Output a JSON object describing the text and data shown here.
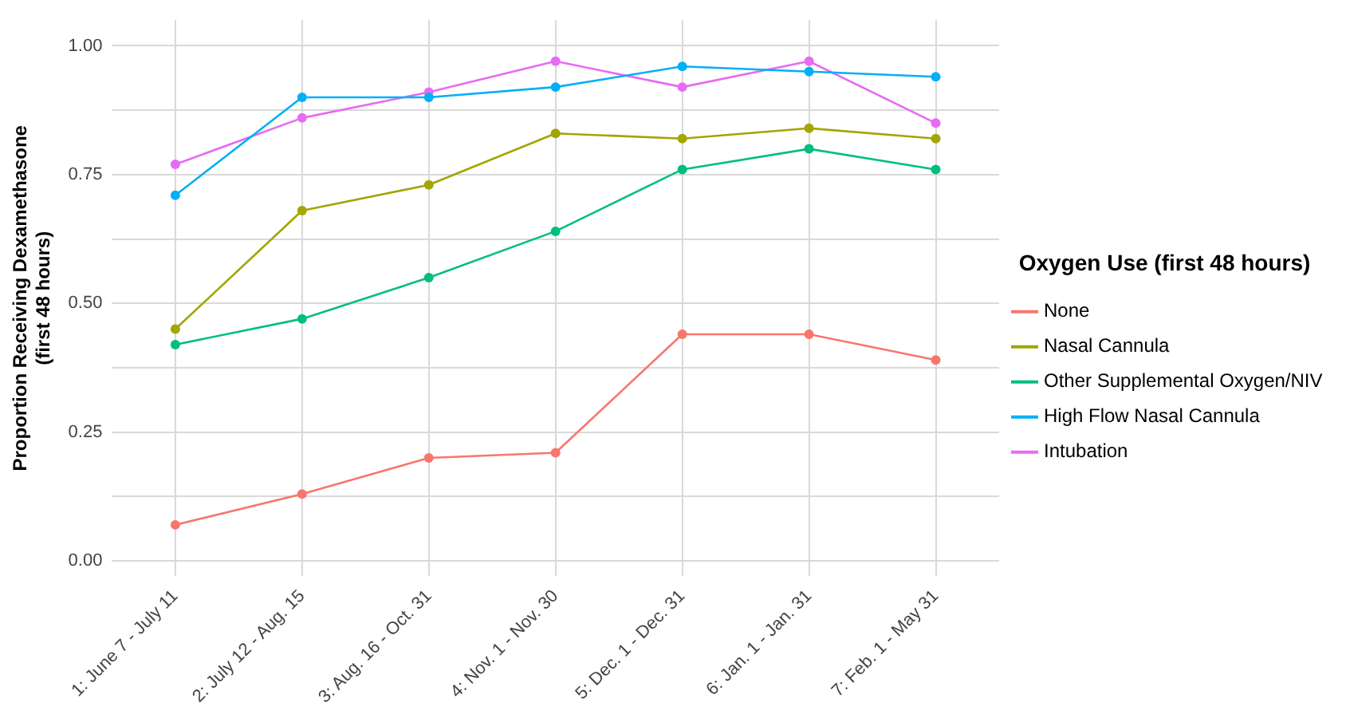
{
  "chart_data": {
    "type": "line",
    "ylabel": "Proportion Receiving Dexamethasone\n(first 48 hours)",
    "legend_title": "Oxygen Use (first 48 hours)",
    "categories": [
      "1: June 7 - July 11",
      "2: July 12 - Aug. 15",
      "3: Aug. 16 - Oct. 31",
      "4: Nov. 1 - Nov. 30",
      "5: Dec. 1 - Dec. 31",
      "6: Jan. 1 - Jan. 31",
      "7: Feb. 1 - May 31"
    ],
    "series": [
      {
        "name": "None",
        "color": "#f8766d",
        "values": [
          0.07,
          0.13,
          0.2,
          0.21,
          0.44,
          0.44,
          0.39
        ]
      },
      {
        "name": "Nasal Cannula",
        "color": "#a3a500",
        "values": [
          0.45,
          0.68,
          0.73,
          0.83,
          0.82,
          0.84,
          0.82
        ]
      },
      {
        "name": "Other Supplemental Oxygen/NIV",
        "color": "#00bf7d",
        "values": [
          0.42,
          0.47,
          0.55,
          0.64,
          0.76,
          0.8,
          0.76
        ]
      },
      {
        "name": "High Flow Nasal Cannula",
        "color": "#00b0f6",
        "values": [
          0.71,
          0.9,
          0.9,
          0.92,
          0.96,
          0.95,
          0.94
        ]
      },
      {
        "name": "Intubation",
        "color": "#e76bf3",
        "values": [
          0.77,
          0.86,
          0.91,
          0.97,
          0.92,
          0.97,
          0.85
        ]
      }
    ],
    "ylim": [
      -0.03,
      1.05
    ],
    "yticks": [
      {
        "value": 0,
        "label": "0.00"
      },
      {
        "value": 0.125,
        "label": null
      },
      {
        "value": 0.25,
        "label": "0.25"
      },
      {
        "value": 0.375,
        "label": null
      },
      {
        "value": 0.5,
        "label": "0.50"
      },
      {
        "value": 0.625,
        "label": null
      },
      {
        "value": 0.75,
        "label": "0.75"
      },
      {
        "value": 0.875,
        "label": null
      },
      {
        "value": 1,
        "label": "1.00"
      }
    ],
    "grid": true,
    "legend": "right",
    "marker": "circle",
    "line_style": "solid"
  }
}
